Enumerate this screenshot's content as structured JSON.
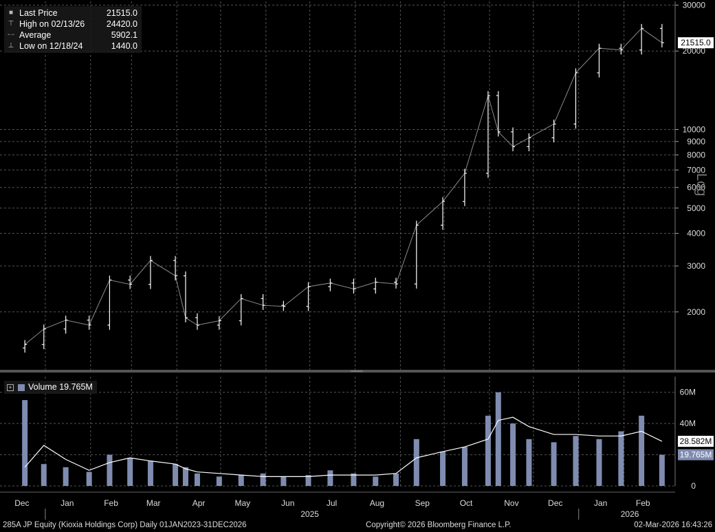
{
  "legend": {
    "rows": [
      {
        "label": "Last Price",
        "value": "21515.0"
      },
      {
        "label": "High on 02/13/26",
        "value": "24420.0"
      },
      {
        "label": "Average",
        "value": "5902.1"
      },
      {
        "label": "Low on 12/18/24",
        "value": "1440.0"
      }
    ]
  },
  "volume_legend": {
    "label": "Volume",
    "value": "19.765M"
  },
  "footer": {
    "left": "285A JP Equity (Kioxia Holdings Corp) Daily 01JAN2023-31DEC2026",
    "center": "Copyright© 2026 Bloomberg Finance L.P.",
    "right": "02-Mar-2026 16:43:26"
  },
  "axis_label_log": "Log",
  "colors": {
    "background": "#000000",
    "price_bars": "#ffffff",
    "volume_bars": "#7f8cb0",
    "volume_ma": "#ffffff",
    "grid": "#555555"
  },
  "chart_data": [
    {
      "type": "line",
      "style": "ohlc-bars",
      "scale": "log",
      "ylim": [
        1200,
        31000
      ],
      "y_ticks": [
        2000,
        3000,
        4000,
        5000,
        6000,
        7000,
        8000,
        9000,
        10000,
        20000,
        30000
      ],
      "y_tick_labels": [
        "2000",
        "3000",
        "4000",
        "5000",
        "6000",
        "7000",
        "8000",
        "9000",
        "10000",
        "20000",
        "30000"
      ],
      "last_price_label": "21515.0",
      "x_month_labels": [
        "Dec",
        "Jan",
        "Feb",
        "Mar",
        "Apr",
        "May",
        "Jun",
        "Jul",
        "Aug",
        "Sep",
        "Oct",
        "Nov",
        "Dec",
        "Jan",
        "Feb"
      ],
      "x_year_labels": [
        "2025",
        "2026"
      ],
      "grid": true,
      "x": [
        "2024-12-18",
        "2024-12-31",
        "2025-01-15",
        "2025-01-31",
        "2025-02-14",
        "2025-02-28",
        "2025-03-14",
        "2025-03-31",
        "2025-04-07",
        "2025-04-15",
        "2025-04-30",
        "2025-05-15",
        "2025-05-30",
        "2025-06-13",
        "2025-06-30",
        "2025-07-15",
        "2025-07-31",
        "2025-08-15",
        "2025-08-29",
        "2025-09-12",
        "2025-09-30",
        "2025-10-15",
        "2025-10-31",
        "2025-11-07",
        "2025-11-17",
        "2025-11-28",
        "2025-12-15",
        "2025-12-30",
        "2026-01-15",
        "2026-01-30",
        "2026-02-13",
        "2026-02-27"
      ],
      "y": [
        1500,
        1720,
        1860,
        1780,
        2650,
        2550,
        3150,
        2750,
        1900,
        1780,
        1850,
        2250,
        2120,
        2100,
        2500,
        2580,
        2450,
        2600,
        2560,
        4300,
        5300,
        6800,
        13500,
        9800,
        8600,
        9300,
        10500,
        16500,
        20500,
        20200,
        24420,
        21515
      ]
    },
    {
      "type": "bar",
      "label": "Volume",
      "y_ticks": [
        0,
        20,
        40,
        60
      ],
      "y_tick_labels": [
        "0",
        "20M",
        "40M",
        "60M"
      ],
      "ylim": [
        0,
        70
      ],
      "ma_label": "28.582M",
      "last_label": "19.765M",
      "x": [
        "2024-12-18",
        "2024-12-31",
        "2025-01-15",
        "2025-01-31",
        "2025-02-14",
        "2025-02-28",
        "2025-03-14",
        "2025-03-31",
        "2025-04-07",
        "2025-04-15",
        "2025-04-30",
        "2025-05-15",
        "2025-05-30",
        "2025-06-13",
        "2025-06-30",
        "2025-07-15",
        "2025-07-31",
        "2025-08-15",
        "2025-08-29",
        "2025-09-12",
        "2025-09-30",
        "2025-10-15",
        "2025-10-31",
        "2025-11-07",
        "2025-11-17",
        "2025-11-28",
        "2025-12-15",
        "2025-12-30",
        "2026-01-15",
        "2026-01-30",
        "2026-02-13",
        "2026-02-27"
      ],
      "values": [
        55,
        14,
        12,
        9,
        20,
        18,
        16,
        14,
        12,
        8,
        6,
        7,
        8,
        6,
        7,
        10,
        8,
        6,
        8,
        30,
        22,
        25,
        45,
        60,
        40,
        30,
        28,
        32,
        30,
        35,
        45,
        20
      ],
      "ma_values": [
        12,
        26,
        17,
        10,
        15,
        18,
        16,
        14,
        11,
        9,
        8,
        7,
        6,
        6,
        6,
        7,
        7,
        7,
        8,
        18,
        22,
        25,
        30,
        42,
        44,
        38,
        33,
        33,
        32,
        32,
        35,
        28.582
      ]
    }
  ]
}
